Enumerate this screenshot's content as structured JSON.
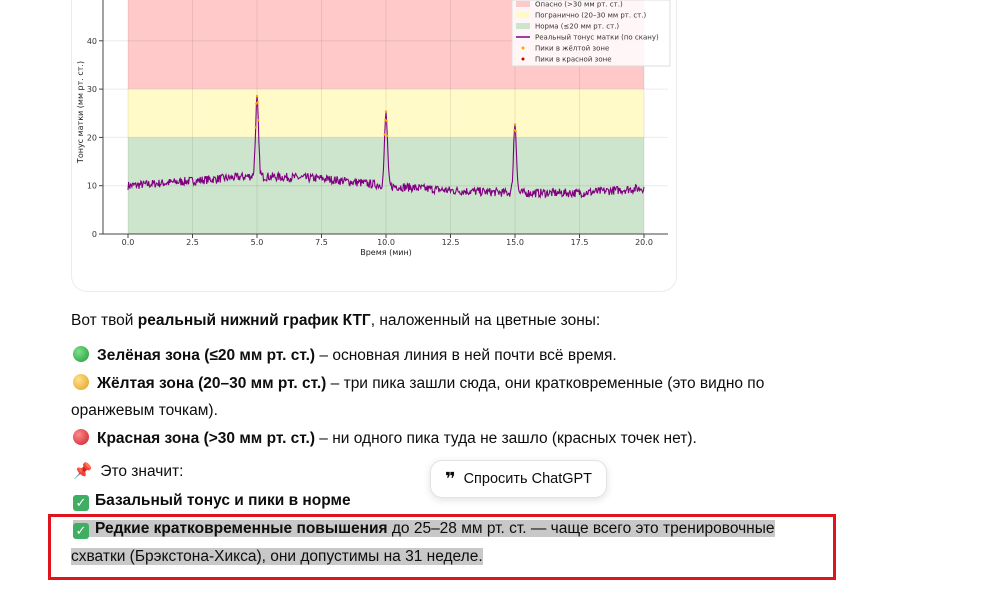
{
  "chart_data": {
    "type": "line",
    "xlabel": "Время (мин)",
    "ylabel": "Тонус матки (мм рт. ст.)",
    "xlim": [
      -1,
      21
    ],
    "ylim": [
      0,
      50
    ],
    "xticks": [
      "0.0",
      "2.5",
      "5.0",
      "7.5",
      "10.0",
      "12.5",
      "15.0",
      "17.5",
      "20.0"
    ],
    "yticks": [
      "0",
      "10",
      "20",
      "30",
      "40"
    ],
    "grid": true,
    "legend_position": "top-right",
    "zones": [
      {
        "name": "Опасно (>30 мм рт. ст.)",
        "from": 30,
        "to": 50,
        "color": "#ffc9c9"
      },
      {
        "name": "Погранично (20–30 мм рт. ст.)",
        "from": 20,
        "to": 30,
        "color": "#fffac8"
      },
      {
        "name": "Норма (≤20 мм рт. ст.)",
        "from": 0,
        "to": 20,
        "color": "#cce5cc"
      }
    ],
    "series": [
      {
        "name": "Реальный тонус матки (по скану)",
        "color": "#800080",
        "baseline": [
          [
            0,
            10
          ],
          [
            2.5,
            11
          ],
          [
            4.8,
            12
          ],
          [
            7.5,
            11.5
          ],
          [
            10,
            10
          ],
          [
            12.5,
            9
          ],
          [
            15,
            8.5
          ],
          [
            17.5,
            8.5
          ],
          [
            20,
            9.5
          ]
        ],
        "peaks": [
          [
            5.0,
            28
          ],
          [
            10.0,
            25
          ],
          [
            15.0,
            23
          ]
        ]
      }
    ],
    "markers": [
      {
        "name": "Пики в жёлтой зоне",
        "color": "#ffa500"
      },
      {
        "name": "Пики в красной зоне",
        "color": "#cc0000"
      }
    ]
  },
  "text": {
    "intro_pre": "Вот твой ",
    "intro_bold": "реальный нижний график КТГ",
    "intro_post": ", наложенный на цветные зоны:",
    "green_bold": "Зелёная зона (≤20 мм рт. ст.)",
    "green_rest": " – основная линия в ней почти всё время.",
    "yellow_bold": "Жёлтая зона (20–30 мм рт. ст.)",
    "yellow_rest1": " – три пика зашли сюда, они кратковременные (это видно по",
    "yellow_rest2": "оранжевым точкам).",
    "red_bold": "Красная зона (>30 мм рт. ст.)",
    "red_rest": " – ни одного пика туда не зашло (красных точек нет).",
    "means": "Это значит:",
    "norm_bold": "Базальный тонус и пики в норме",
    "rare_bold": "Редкие кратковременные повышения",
    "rare_rest1": " до 25–28 мм рт. ст. — чаще всего это тренировочные",
    "rare_rest2": "схватки (Брэкстона-Хикса), они допустимы на 31 неделе."
  },
  "popup": {
    "label": "Спросить ChatGPT",
    "icon": "quote-icon"
  }
}
